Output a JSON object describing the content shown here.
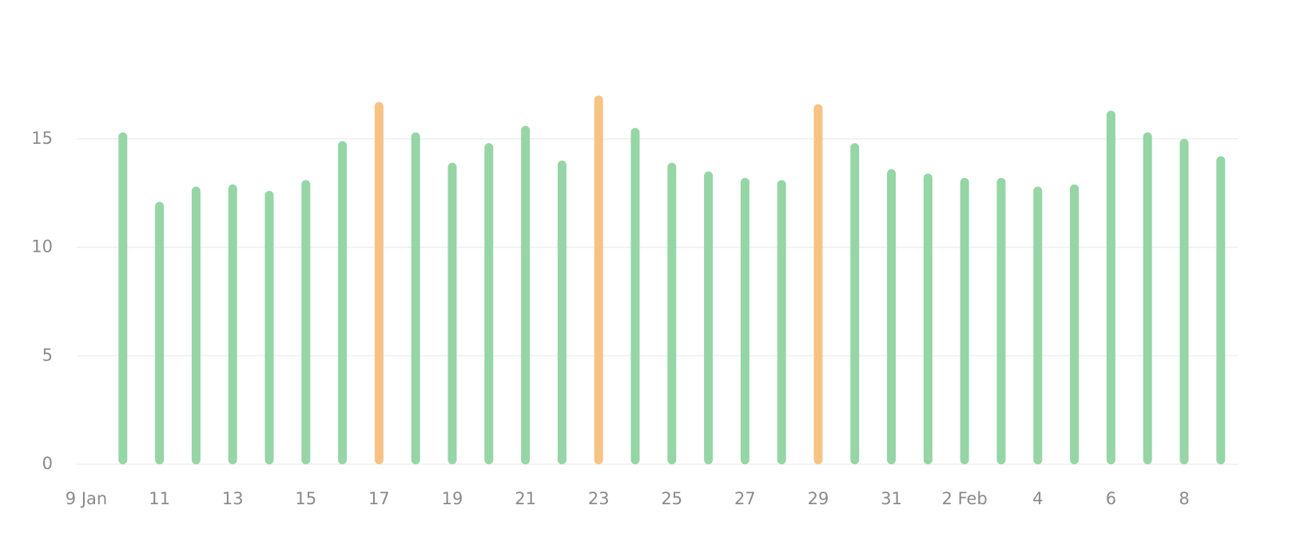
{
  "chart_data": {
    "type": "bar",
    "categories": [
      "9 Jan",
      null,
      "11",
      null,
      "13",
      null,
      "15",
      null,
      "17",
      null,
      "19",
      null,
      "21",
      null,
      "23",
      null,
      "25",
      null,
      "27",
      null,
      "29",
      null,
      "31",
      null,
      "2 Feb",
      null,
      "4",
      null,
      "6",
      null,
      "8",
      null
    ],
    "values": [
      null,
      15.3,
      12.1,
      12.8,
      12.9,
      12.6,
      13.1,
      14.9,
      16.7,
      15.3,
      13.9,
      14.8,
      15.6,
      14.0,
      17.0,
      15.5,
      13.9,
      13.5,
      13.2,
      13.1,
      16.6,
      14.8,
      13.6,
      13.4,
      13.2,
      13.2,
      12.8,
      12.9,
      16.3,
      15.3,
      15.0,
      14.2
    ],
    "colors": [
      null,
      "#95d5a6",
      "#95d5a6",
      "#95d5a6",
      "#95d5a6",
      "#95d5a6",
      "#95d5a6",
      "#95d5a6",
      "#f7c384",
      "#95d5a6",
      "#95d5a6",
      "#95d5a6",
      "#95d5a6",
      "#95d5a6",
      "#f7c384",
      "#95d5a6",
      "#95d5a6",
      "#95d5a6",
      "#95d5a6",
      "#95d5a6",
      "#f7c384",
      "#95d5a6",
      "#95d5a6",
      "#95d5a6",
      "#95d5a6",
      "#95d5a6",
      "#95d5a6",
      "#95d5a6",
      "#95d5a6",
      "#95d5a6",
      "#95d5a6",
      "#95d5a6"
    ],
    "ylim": [
      0,
      20
    ],
    "yticks": [
      0,
      5,
      10,
      15
    ],
    "grid": true
  }
}
